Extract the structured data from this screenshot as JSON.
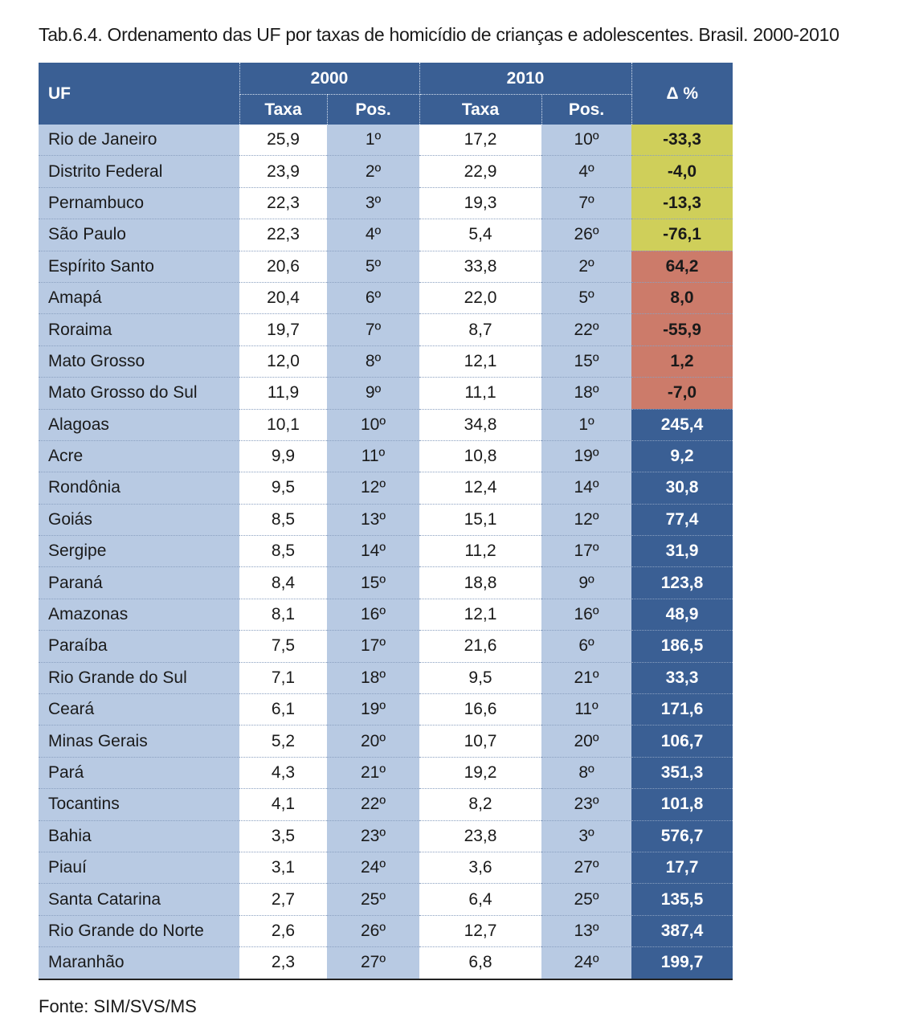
{
  "caption": "Tab.6.4. Ordenamento das UF por taxas de homicídio de crianças e adolescentes. Brasil. 2000-2010",
  "header": {
    "uf": "UF",
    "year1": "2000",
    "year2": "2010",
    "taxa": "Taxa",
    "pos": "Pos.",
    "delta": "Δ %"
  },
  "colors": {
    "header_blue": "#3a5f94",
    "light_blue": "#b8cae3",
    "yellow": "#cfcf5a",
    "red": "#cc7b6a"
  },
  "rows": [
    {
      "uf": "Rio de Janeiro",
      "taxa2000": "25,9",
      "pos2000": "1º",
      "taxa2010": "17,2",
      "pos2010": "10º",
      "delta": "-33,3",
      "color": "yellow"
    },
    {
      "uf": "Distrito Federal",
      "taxa2000": "23,9",
      "pos2000": "2º",
      "taxa2010": "22,9",
      "pos2010": "4º",
      "delta": "-4,0",
      "color": "yellow"
    },
    {
      "uf": "Pernambuco",
      "taxa2000": "22,3",
      "pos2000": "3º",
      "taxa2010": "19,3",
      "pos2010": "7º",
      "delta": "-13,3",
      "color": "yellow"
    },
    {
      "uf": "São Paulo",
      "taxa2000": "22,3",
      "pos2000": "4º",
      "taxa2010": "5,4",
      "pos2010": "26º",
      "delta": "-76,1",
      "color": "yellow"
    },
    {
      "uf": "Espírito Santo",
      "taxa2000": "20,6",
      "pos2000": "5º",
      "taxa2010": "33,8",
      "pos2010": "2º",
      "delta": "64,2",
      "color": "red"
    },
    {
      "uf": "Amapá",
      "taxa2000": "20,4",
      "pos2000": "6º",
      "taxa2010": "22,0",
      "pos2010": "5º",
      "delta": "8,0",
      "color": "red"
    },
    {
      "uf": "Roraima",
      "taxa2000": "19,7",
      "pos2000": "7º",
      "taxa2010": "8,7",
      "pos2010": "22º",
      "delta": "-55,9",
      "color": "red"
    },
    {
      "uf": "Mato Grosso",
      "taxa2000": "12,0",
      "pos2000": "8º",
      "taxa2010": "12,1",
      "pos2010": "15º",
      "delta": "1,2",
      "color": "red"
    },
    {
      "uf": "Mato Grosso do Sul",
      "taxa2000": "11,9",
      "pos2000": "9º",
      "taxa2010": "11,1",
      "pos2010": "18º",
      "delta": "-7,0",
      "color": "red"
    },
    {
      "uf": "Alagoas",
      "taxa2000": "10,1",
      "pos2000": "10º",
      "taxa2010": "34,8",
      "pos2010": "1º",
      "delta": "245,4",
      "color": "blue"
    },
    {
      "uf": "Acre",
      "taxa2000": "9,9",
      "pos2000": "11º",
      "taxa2010": "10,8",
      "pos2010": "19º",
      "delta": "9,2",
      "color": "blue"
    },
    {
      "uf": "Rondônia",
      "taxa2000": "9,5",
      "pos2000": "12º",
      "taxa2010": "12,4",
      "pos2010": "14º",
      "delta": "30,8",
      "color": "blue"
    },
    {
      "uf": "Goiás",
      "taxa2000": "8,5",
      "pos2000": "13º",
      "taxa2010": "15,1",
      "pos2010": "12º",
      "delta": "77,4",
      "color": "blue"
    },
    {
      "uf": "Sergipe",
      "taxa2000": "8,5",
      "pos2000": "14º",
      "taxa2010": "11,2",
      "pos2010": "17º",
      "delta": "31,9",
      "color": "blue"
    },
    {
      "uf": "Paraná",
      "taxa2000": "8,4",
      "pos2000": "15º",
      "taxa2010": "18,8",
      "pos2010": "9º",
      "delta": "123,8",
      "color": "blue"
    },
    {
      "uf": "Amazonas",
      "taxa2000": "8,1",
      "pos2000": "16º",
      "taxa2010": "12,1",
      "pos2010": "16º",
      "delta": "48,9",
      "color": "blue"
    },
    {
      "uf": "Paraíba",
      "taxa2000": "7,5",
      "pos2000": "17º",
      "taxa2010": "21,6",
      "pos2010": "6º",
      "delta": "186,5",
      "color": "blue"
    },
    {
      "uf": "Rio Grande do Sul",
      "taxa2000": "7,1",
      "pos2000": "18º",
      "taxa2010": "9,5",
      "pos2010": "21º",
      "delta": "33,3",
      "color": "blue"
    },
    {
      "uf": "Ceará",
      "taxa2000": "6,1",
      "pos2000": "19º",
      "taxa2010": "16,6",
      "pos2010": "11º",
      "delta": "171,6",
      "color": "blue"
    },
    {
      "uf": "Minas Gerais",
      "taxa2000": "5,2",
      "pos2000": "20º",
      "taxa2010": "10,7",
      "pos2010": "20º",
      "delta": "106,7",
      "color": "blue"
    },
    {
      "uf": "Pará",
      "taxa2000": "4,3",
      "pos2000": "21º",
      "taxa2010": "19,2",
      "pos2010": "8º",
      "delta": "351,3",
      "color": "blue"
    },
    {
      "uf": "Tocantins",
      "taxa2000": "4,1",
      "pos2000": "22º",
      "taxa2010": "8,2",
      "pos2010": "23º",
      "delta": "101,8",
      "color": "blue"
    },
    {
      "uf": "Bahia",
      "taxa2000": "3,5",
      "pos2000": "23º",
      "taxa2010": "23,8",
      "pos2010": "3º",
      "delta": "576,7",
      "color": "blue"
    },
    {
      "uf": "Piauí",
      "taxa2000": "3,1",
      "pos2000": "24º",
      "taxa2010": "3,6",
      "pos2010": "27º",
      "delta": "17,7",
      "color": "blue"
    },
    {
      "uf": "Santa Catarina",
      "taxa2000": "2,7",
      "pos2000": "25º",
      "taxa2010": "6,4",
      "pos2010": "25º",
      "delta": "135,5",
      "color": "blue"
    },
    {
      "uf": "Rio Grande do Norte",
      "taxa2000": "2,6",
      "pos2000": "26º",
      "taxa2010": "12,7",
      "pos2010": "13º",
      "delta": "387,4",
      "color": "blue"
    },
    {
      "uf": "Maranhão",
      "taxa2000": "2,3",
      "pos2000": "27º",
      "taxa2010": "6,8",
      "pos2010": "24º",
      "delta": "199,7",
      "color": "blue"
    }
  ],
  "footer": "Fonte: SIM/SVS/MS"
}
